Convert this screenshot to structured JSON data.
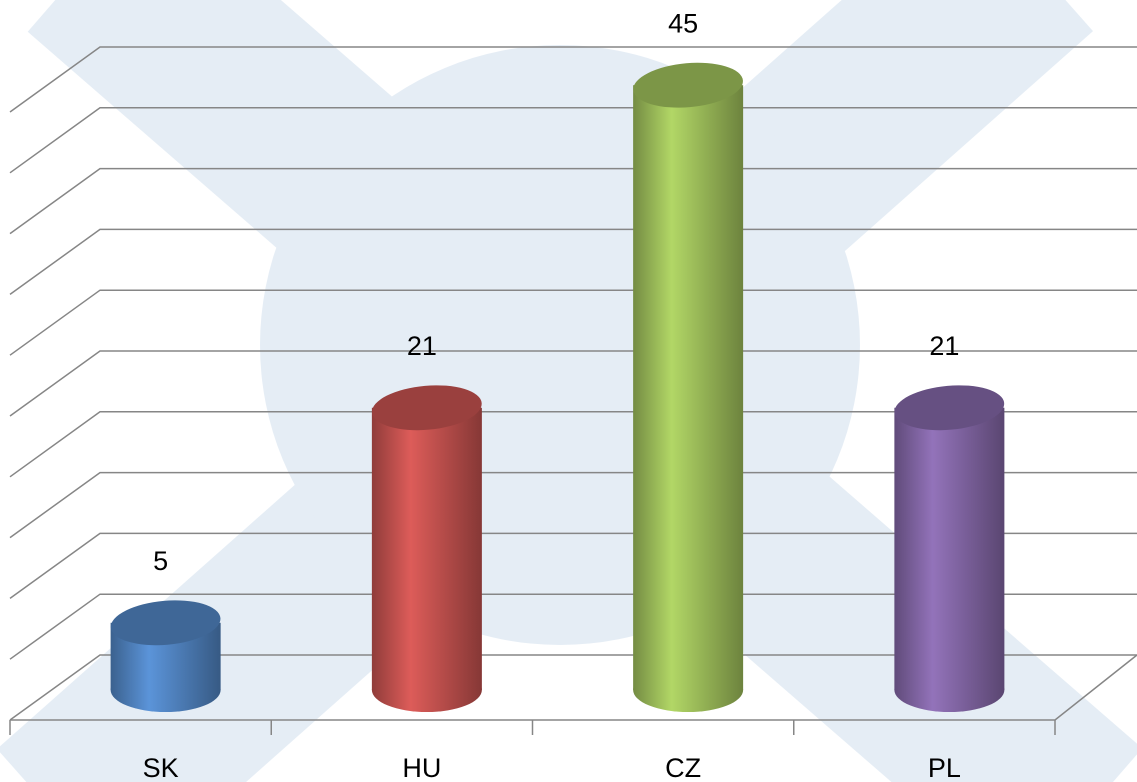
{
  "chart_data": {
    "type": "bar3d",
    "categories": [
      "SK",
      "HU",
      "CZ",
      "PL"
    ],
    "values": [
      5,
      21,
      45,
      21
    ],
    "colors": [
      "#4f81bd",
      "#c0504d",
      "#9bbb59",
      "#8064a2"
    ],
    "ylim": [
      0,
      50
    ],
    "yticks": [
      0,
      5,
      10,
      15,
      20,
      25,
      30,
      35,
      40,
      45,
      50
    ],
    "grid": true
  }
}
